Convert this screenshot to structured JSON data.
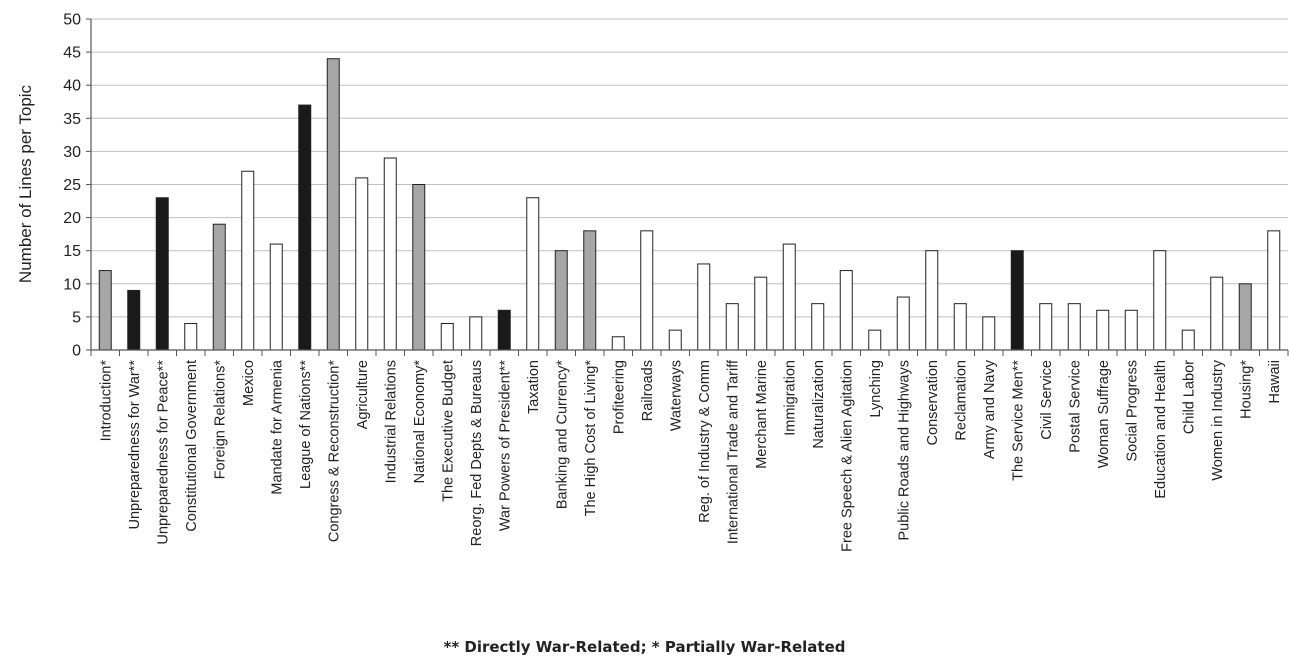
{
  "chart_data": {
    "type": "bar",
    "title": "",
    "xlabel": "",
    "ylabel": "Number of Lines per Topic",
    "ylim": [
      0,
      50
    ],
    "ytick_step": 5,
    "grid": true,
    "legend": "none",
    "caption": "** Directly War-Related; * Partially War-Related",
    "colors": {
      "direct": "#1a1a1a",
      "partial": "#a6a6a6",
      "none": "#ffffff",
      "grid": "#bfbfbf",
      "outline": "#222222"
    },
    "categories": [
      "Introduction*",
      "Unpreparedness for War**",
      "Unpreparedness for Peace**",
      "Constitutional Government",
      "Foreign Relations*",
      "Mexico",
      "Mandate for Armenia",
      "League of Nations**",
      "Congress & Reconstruction*",
      "Agriculture",
      "Industrial Relations",
      "National Economy*",
      "The Executive Budget",
      "Reorg. Fed Depts & Bureaus",
      "War Powers of President**",
      "Taxation",
      "Banking and Currency*",
      "The High Cost of Living*",
      "Profiteering",
      "Railroads",
      "Waterways",
      "Reg. of Industry & Comm",
      "International Trade and Tariff",
      "Merchant Marine",
      "Immigration",
      "Naturalization",
      "Free Speech & Alien Agitation",
      "Lynching",
      "Public Roads and Highways",
      "Conservation",
      "Reclamation",
      "Army and Navy",
      "The Service Men**",
      "Civil Service",
      "Postal Service",
      "Woman Suffrage",
      "Social Progress",
      "Education and Health",
      "Child Labor",
      "Women in Industry",
      "Housing*",
      "Hawaii"
    ],
    "values": [
      12,
      9,
      23,
      4,
      19,
      27,
      16,
      37,
      44,
      26,
      29,
      25,
      4,
      5,
      6,
      23,
      15,
      18,
      2,
      18,
      3,
      13,
      7,
      11,
      16,
      7,
      12,
      3,
      8,
      15,
      7,
      5,
      15,
      7,
      7,
      6,
      6,
      15,
      3,
      11,
      10,
      18
    ],
    "war_relation": [
      "partial",
      "direct",
      "direct",
      "none",
      "partial",
      "none",
      "none",
      "direct",
      "partial",
      "none",
      "none",
      "partial",
      "none",
      "none",
      "direct",
      "none",
      "partial",
      "partial",
      "none",
      "none",
      "none",
      "none",
      "none",
      "none",
      "none",
      "none",
      "none",
      "none",
      "none",
      "none",
      "none",
      "none",
      "direct",
      "none",
      "none",
      "none",
      "none",
      "none",
      "none",
      "none",
      "partial",
      "none"
    ]
  }
}
